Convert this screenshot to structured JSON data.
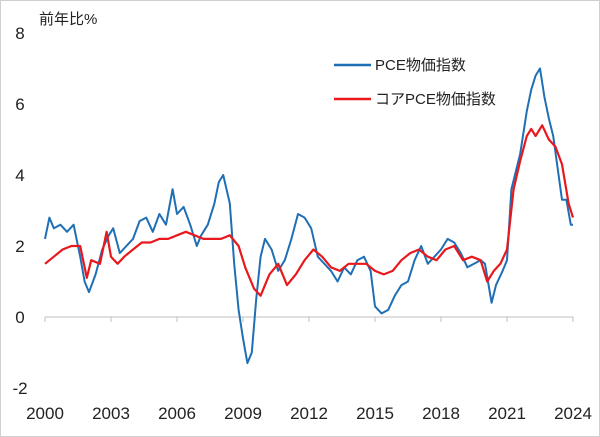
{
  "chart_data": {
    "type": "line",
    "ylabel": "前年比%",
    "xlim": [
      2000,
      2024
    ],
    "ylim": [
      -2,
      8
    ],
    "yticks": [
      -2,
      0,
      2,
      4,
      6,
      8
    ],
    "xticks": [
      2000,
      2003,
      2006,
      2009,
      2012,
      2015,
      2018,
      2021,
      2024
    ],
    "legend_position": "top-right",
    "grid": false,
    "series": [
      {
        "name": "PCE物価指数",
        "color": "#1f6fb5",
        "x": [
          2000,
          2000.2,
          2000.4,
          2000.7,
          2001,
          2001.3,
          2001.6,
          2001.8,
          2002,
          2002.3,
          2002.6,
          2002.9,
          2003.1,
          2003.4,
          2003.7,
          2004,
          2004.3,
          2004.6,
          2004.9,
          2005.2,
          2005.5,
          2005.8,
          2006,
          2006.3,
          2006.6,
          2006.9,
          2007.1,
          2007.4,
          2007.7,
          2007.9,
          2008.1,
          2008.4,
          2008.6,
          2008.8,
          2009,
          2009.2,
          2009.4,
          2009.6,
          2009.8,
          2010,
          2010.3,
          2010.6,
          2010.9,
          2011.2,
          2011.5,
          2011.8,
          2012.1,
          2012.4,
          2012.7,
          2013,
          2013.3,
          2013.6,
          2013.9,
          2014.2,
          2014.5,
          2014.8,
          2015,
          2015.3,
          2015.6,
          2015.9,
          2016.2,
          2016.5,
          2016.8,
          2017.1,
          2017.4,
          2017.7,
          2018,
          2018.3,
          2018.6,
          2018.9,
          2019.2,
          2019.5,
          2019.8,
          2020,
          2020.3,
          2020.5,
          2020.8,
          2021,
          2021.2,
          2021.4,
          2021.6,
          2021.9,
          2022.1,
          2022.3,
          2022.5,
          2022.7,
          2022.9,
          2023.1,
          2023.3,
          2023.5,
          2023.7,
          2023.9,
          2024
        ],
        "values": [
          2.2,
          2.8,
          2.5,
          2.6,
          2.4,
          2.6,
          1.7,
          1.0,
          0.7,
          1.2,
          1.9,
          2.3,
          2.5,
          1.8,
          2.0,
          2.2,
          2.7,
          2.8,
          2.4,
          2.9,
          2.6,
          3.6,
          2.9,
          3.1,
          2.6,
          2.0,
          2.3,
          2.6,
          3.2,
          3.8,
          4.0,
          3.2,
          1.5,
          0.2,
          -0.6,
          -1.3,
          -1.0,
          0.5,
          1.7,
          2.2,
          1.9,
          1.3,
          1.6,
          2.2,
          2.9,
          2.8,
          2.5,
          1.7,
          1.5,
          1.3,
          1.0,
          1.4,
          1.2,
          1.6,
          1.7,
          1.3,
          0.3,
          0.1,
          0.2,
          0.6,
          0.9,
          1.0,
          1.6,
          2.0,
          1.5,
          1.7,
          1.9,
          2.2,
          2.1,
          1.8,
          1.4,
          1.5,
          1.6,
          1.5,
          0.4,
          0.9,
          1.3,
          1.6,
          3.6,
          4.1,
          4.6,
          5.8,
          6.4,
          6.8,
          7.0,
          6.2,
          5.6,
          5.1,
          4.2,
          3.3,
          3.3,
          2.6,
          2.6
        ]
      },
      {
        "name": "コアPCE物価指数",
        "color": "#e8191d",
        "x": [
          2000,
          2000.4,
          2000.8,
          2001.2,
          2001.6,
          2001.9,
          2002.1,
          2002.5,
          2002.8,
          2003,
          2003.3,
          2003.6,
          2004,
          2004.4,
          2004.8,
          2005.2,
          2005.6,
          2006,
          2006.4,
          2006.8,
          2007.2,
          2007.6,
          2008,
          2008.4,
          2008.8,
          2009.1,
          2009.5,
          2009.8,
          2010.2,
          2010.6,
          2011,
          2011.4,
          2011.8,
          2012.2,
          2012.6,
          2013,
          2013.4,
          2013.8,
          2014.2,
          2014.6,
          2015,
          2015.4,
          2015.8,
          2016.2,
          2016.6,
          2017,
          2017.4,
          2017.8,
          2018.2,
          2018.6,
          2019,
          2019.4,
          2019.8,
          2020.1,
          2020.4,
          2020.7,
          2021,
          2021.3,
          2021.6,
          2021.9,
          2022.1,
          2022.3,
          2022.6,
          2022.9,
          2023.2,
          2023.5,
          2023.8,
          2024
        ],
        "values": [
          1.5,
          1.7,
          1.9,
          2.0,
          2.0,
          1.1,
          1.6,
          1.5,
          2.4,
          1.7,
          1.5,
          1.7,
          1.9,
          2.1,
          2.1,
          2.2,
          2.2,
          2.3,
          2.4,
          2.3,
          2.2,
          2.2,
          2.2,
          2.3,
          2.0,
          1.4,
          0.8,
          0.6,
          1.2,
          1.5,
          0.9,
          1.2,
          1.6,
          1.9,
          1.7,
          1.4,
          1.3,
          1.5,
          1.5,
          1.5,
          1.3,
          1.2,
          1.3,
          1.6,
          1.8,
          1.9,
          1.7,
          1.6,
          1.9,
          2.0,
          1.6,
          1.7,
          1.6,
          1.0,
          1.3,
          1.5,
          1.9,
          3.6,
          4.4,
          5.1,
          5.3,
          5.1,
          5.4,
          5.0,
          4.8,
          4.3,
          3.2,
          2.8
        ]
      }
    ]
  }
}
